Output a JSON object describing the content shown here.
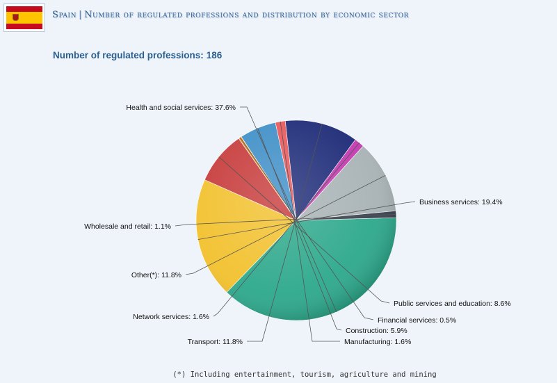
{
  "header": {
    "country": "Spain",
    "title": "Number of regulated professions and distribution by economic sector",
    "separator": "|",
    "flag_icon": "spain-flag-icon"
  },
  "subtitle": {
    "label": "Number of regulated professions:",
    "value": "186"
  },
  "chart_data": {
    "type": "pie",
    "title": "",
    "slices": [
      {
        "name": "Health and social services",
        "label": "Health and social services: 37.6%",
        "value": 37.6,
        "color": "#2ea98c"
      },
      {
        "name": "Business services",
        "label": "Business services: 19.4%",
        "value": 19.4,
        "color": "#f2c12e"
      },
      {
        "name": "Public services and education",
        "label": "Public services and education: 8.6%",
        "value": 8.6,
        "color": "#c73b3b"
      },
      {
        "name": "Financial services",
        "label": "Financial services: 0.5%",
        "value": 0.5,
        "color": "#e8902a"
      },
      {
        "name": "Construction",
        "label": "Construction: 5.9%",
        "value": 5.9,
        "color": "#3f8fc7"
      },
      {
        "name": "Manufacturing",
        "label": "Manufacturing: 1.6%",
        "value": 1.6,
        "color": "#e9585a"
      },
      {
        "name": "Transport",
        "label": "Transport: 11.8%",
        "value": 11.8,
        "color": "#1e2c78"
      },
      {
        "name": "Network services",
        "label": "Network services: 1.6%",
        "value": 1.6,
        "color": "#c43bb0"
      },
      {
        "name": "Other(*)",
        "label": "Other(*): 11.8%",
        "value": 11.8,
        "color": "#a9b3b5"
      },
      {
        "name": "Wholesale and retail",
        "label": "Wholesale and retail: 1.1%",
        "value": 1.1,
        "color": "#3a4150"
      }
    ],
    "data_labels": "outside with leader lines"
  },
  "footnote": "(*) Including entertainment, tourism, agriculture and mining"
}
